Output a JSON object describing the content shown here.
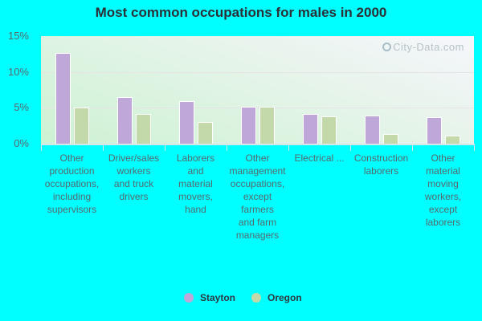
{
  "chart_data": {
    "type": "bar",
    "title": "Most common occupations for males in 2000",
    "xlabel": "",
    "ylabel": "",
    "ylim": [
      0,
      15
    ],
    "yticks": [
      "0%",
      "5%",
      "10%",
      "15%"
    ],
    "grid": true,
    "legend_position": "bottom",
    "categories": [
      "Other production occupations, including supervisors",
      "Driver/sales workers and truck drivers",
      "Laborers and material movers, hand",
      "Other management occupations, except farmers and farm managers",
      "Electrical ...",
      "Construction laborers",
      "Other material moving workers, except laborers"
    ],
    "category_display_labels": [
      "Other\nproduction\noccupations,\nincluding\nsupervisors",
      "Driver/sales\nworkers\nand truck\ndrivers",
      "Laborers\nand\nmaterial\nmovers,\nhand",
      "Other\nmanagement\noccupations,\nexcept\nfarmers\nand farm\nmanagers",
      "Electrical ...",
      "Construction\nlaborers",
      "Other\nmaterial\nmoving\nworkers,\nexcept\nlaborers"
    ],
    "series": [
      {
        "name": "Stayton",
        "color": "#bfa8d9",
        "values": [
          12.6,
          6.5,
          5.9,
          5.2,
          4.1,
          3.9,
          3.7
        ]
      },
      {
        "name": "Oregon",
        "color": "#c4d9a9",
        "values": [
          5.0,
          4.1,
          3.0,
          5.1,
          3.8,
          1.3,
          1.1
        ]
      }
    ]
  },
  "watermark": "City-Data.com"
}
